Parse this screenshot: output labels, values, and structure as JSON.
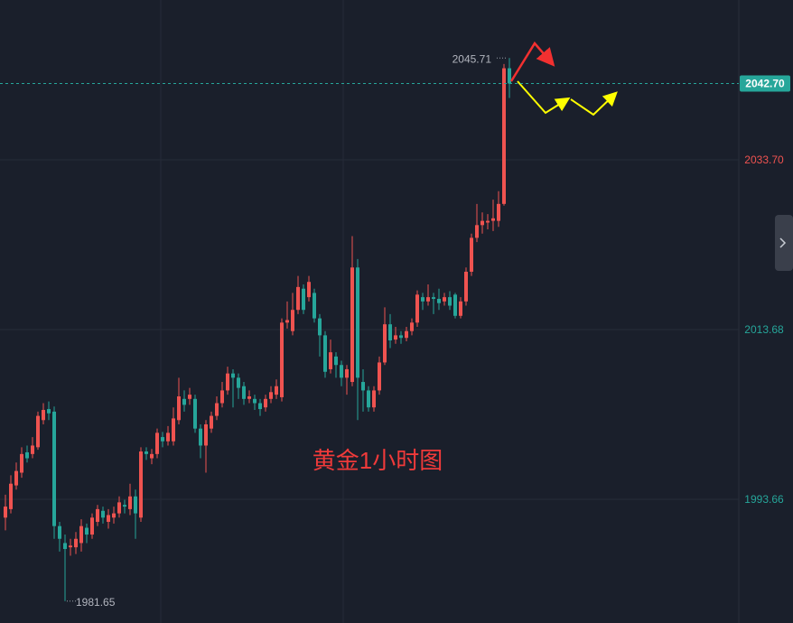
{
  "chart_data": {
    "type": "candlestick",
    "title": "黄金1小时图",
    "up_color": "#ef5350",
    "down_color": "#26a69a",
    "open": [
      1991.5,
      1992.5,
      1995.3,
      1996.8,
      1999.2,
      1999.0,
      1999.8,
      2003.0,
      2004.3,
      2004.0,
      1990.5,
      1988.5,
      1988.0,
      1988.0,
      1988.5,
      1990.3,
      1989.5,
      1991.0,
      1992.3,
      1991.0,
      1991.5,
      1992.0,
      1993.0,
      1992.5,
      1994.0,
      1991.5,
      1999.3,
      1998.5,
      1999.0,
      2001.0,
      2000.5,
      2000.5,
      2003.0,
      2005.5,
      2005.5,
      2005.5,
      2002.0,
      2000.0,
      2002.0,
      2003.5,
      2005.0,
      2006.5,
      2008.5,
      2008.0,
      2007.0,
      2005.5,
      2005.5,
      2005.0,
      2004.5,
      2005.5,
      2006.0,
      2005.7,
      2014.5,
      2013.5,
      2016.0,
      2018.5,
      2017.5,
      2018.0,
      2015.0,
      2013.0,
      2009.0,
      2010.5,
      2009.5,
      2008.0,
      2007.5,
      2021.0,
      2007.5,
      2006.5,
      2004.5,
      2006.5,
      2009.8,
      2014.3,
      2012.5,
      2013.0,
      2012.7,
      2013.5,
      2014.5,
      2017.5,
      2017.0,
      2017.5,
      2017.3,
      2017.0,
      2017.5,
      2017.8,
      2015.3,
      2017.0,
      2020.5,
      2024.5,
      2026.0,
      2026.3,
      2026.5,
      2026.5,
      2028.5,
      2044.5
    ],
    "high": [
      1994.2,
      1996.5,
      1998.0,
      1999.8,
      2000.0,
      2001.0,
      2004.0,
      2005.0,
      2005.2,
      2004.6,
      1991.0,
      1989.5,
      1989.0,
      1989.8,
      1991.3,
      1990.8,
      1992.0,
      1993.0,
      1992.8,
      1992.5,
      1992.8,
      1994.0,
      1993.6,
      1995.5,
      1994.8,
      1999.8,
      1999.8,
      1999.6,
      2002.0,
      2001.6,
      2002.3,
      2004.5,
      2008.0,
      2006.5,
      2006.8,
      2006.0,
      2002.5,
      2003.0,
      2004.0,
      2005.8,
      2007.5,
      2009.3,
      2009.0,
      2008.5,
      2007.5,
      2006.5,
      2006.0,
      2005.5,
      2006.0,
      2007.0,
      2007.8,
      2015.0,
      2017.0,
      2018.0,
      2020.0,
      2019.0,
      2020.0,
      2018.5,
      2015.5,
      2013.5,
      2012.5,
      2011.0,
      2010.0,
      2009.5,
      2024.7,
      2022.0,
      2009.0,
      2007.0,
      2007.0,
      2010.5,
      2016.3,
      2015.5,
      2014.0,
      2013.5,
      2014.0,
      2015.0,
      2018.3,
      2018.0,
      2019.0,
      2018.0,
      2018.5,
      2018.0,
      2018.2,
      2018.0,
      2017.5,
      2021.0,
      2025.0,
      2028.5,
      2027.5,
      2027.3,
      2029.0,
      2030.0,
      2045.0,
      2045.71
    ],
    "low": [
      1990.0,
      1992.0,
      1994.8,
      1996.2,
      1998.0,
      1998.5,
      1999.5,
      2002.5,
      2003.0,
      1989.0,
      1987.5,
      1981.65,
      1987.0,
      1987.2,
      1987.5,
      1988.5,
      1989.0,
      1990.5,
      1990.8,
      1990.2,
      1990.8,
      1991.5,
      1992.0,
      1991.8,
      1989.0,
      1991.0,
      1998.3,
      1997.8,
      1998.5,
      1999.8,
      2000.0,
      2000.0,
      2002.5,
      2004.0,
      2004.8,
      2001.5,
      1998.5,
      1996.8,
      2001.5,
      2003.0,
      2004.5,
      2006.0,
      2004.5,
      2005.5,
      2004.8,
      2005.0,
      2004.2,
      2003.5,
      2004.0,
      2005.0,
      2005.5,
      2005.2,
      2013.8,
      2013.0,
      2015.5,
      2015.5,
      2017.0,
      2014.5,
      2010.5,
      2008.0,
      2008.5,
      2008.0,
      2007.0,
      2006.0,
      2007.0,
      2003.0,
      2004.0,
      2004.0,
      2004.0,
      2006.0,
      2009.5,
      2011.5,
      2012.0,
      2012.0,
      2012.3,
      2013.0,
      2014.0,
      2016.0,
      2016.5,
      2015.5,
      2016.0,
      2016.5,
      2016.0,
      2015.0,
      2015.0,
      2016.5,
      2020.0,
      2024.0,
      2025.0,
      2025.5,
      2025.3,
      2025.8,
      2028.3,
      2041.0
    ],
    "close": [
      1992.8,
      1995.5,
      1997.0,
      1999.0,
      1998.5,
      2000.0,
      2003.5,
      2004.2,
      2003.8,
      1990.5,
      1989.0,
      1987.8,
      1988.2,
      1989.0,
      1990.5,
      1989.5,
      1991.5,
      1992.5,
      1991.5,
      1991.8,
      1992.0,
      1993.3,
      1992.8,
      1994.0,
      1992.0,
      1999.3,
      1999.0,
      1999.0,
      2001.5,
      2000.5,
      2001.5,
      2003.2,
      2005.8,
      2004.8,
      2006.0,
      2002.0,
      2000.0,
      2002.5,
      2003.5,
      2005.0,
      2006.5,
      2008.5,
      2008.0,
      2006.8,
      2005.5,
      2005.8,
      2005.0,
      2004.3,
      2005.5,
      2006.3,
      2007.0,
      2014.5,
      2014.8,
      2016.0,
      2018.7,
      2016.0,
      2019.3,
      2015.0,
      2013.0,
      2008.7,
      2011.0,
      2009.5,
      2008.0,
      2009.0,
      2021.0,
      2008.0,
      2006.5,
      2004.5,
      2006.5,
      2009.8,
      2014.3,
      2012.4,
      2013.0,
      2012.7,
      2013.5,
      2014.5,
      2017.8,
      2017.0,
      2017.5,
      2017.3,
      2016.8,
      2017.5,
      2016.5,
      2015.3,
      2017.0,
      2020.5,
      2024.5,
      2026.0,
      2026.5,
      2026.5,
      2026.8,
      2028.5,
      2044.5,
      2042.7
    ],
    "ylim": [
      1979.07,
      2052.55
    ],
    "yticks": [
      {
        "value": 2033.7,
        "label": "2033.70",
        "color": "#ef5350"
      },
      {
        "value": 2013.68,
        "label": "2013.68",
        "color": "#26a69a"
      },
      {
        "value": 1993.66,
        "label": "1993.66",
        "color": "#26a69a"
      }
    ],
    "grid": true,
    "last_price": {
      "value": 2042.7,
      "label": "2042.70",
      "color": "#26a69a"
    },
    "annotations": [
      {
        "text": 2045.71,
        "index": 93
      },
      {
        "text": 1981.65,
        "index": 11
      }
    ]
  }
}
